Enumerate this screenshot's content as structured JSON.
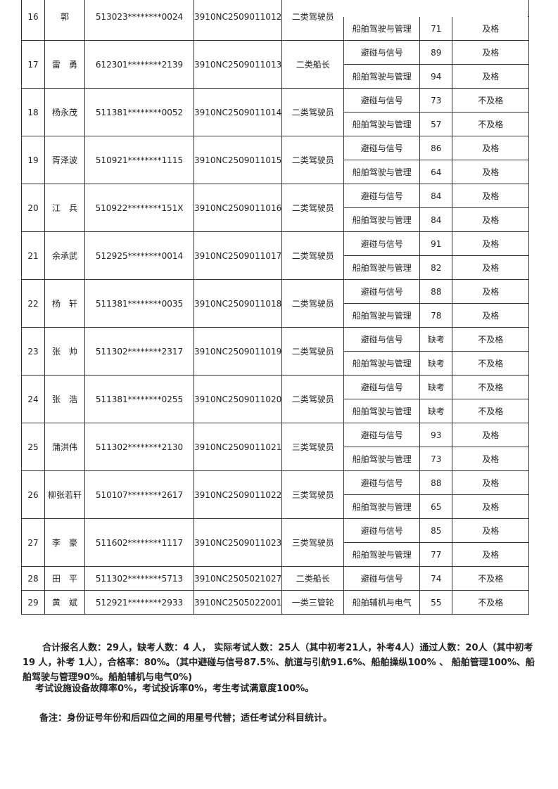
{
  "rows": [
    {
      "no": "16",
      "name": "郭",
      "id": "513023********0024",
      "exam_no": "3910NC2509011012",
      "category": "二类驾驶员",
      "subjects": [
        {
          "name": "",
          "score": "",
          "result": ""
        },
        {
          "name": "船舶驾驶与管理",
          "score": "71",
          "result": "及格"
        }
      ]
    },
    {
      "no": "17",
      "name": "雷　勇",
      "id": "612301********2139",
      "exam_no": "3910NC2509011013",
      "category": "二类船长",
      "subjects": [
        {
          "name": "避碰与信号",
          "score": "89",
          "result": "及格"
        },
        {
          "name": "船舶驾驶与管理",
          "score": "94",
          "result": "及格"
        }
      ]
    },
    {
      "no": "18",
      "name": "杨永茂",
      "id": "511381********0052",
      "exam_no": "3910NC2509011014",
      "category": "二类驾驶员",
      "subjects": [
        {
          "name": "避碰与信号",
          "score": "73",
          "result": "不及格"
        },
        {
          "name": "船舶驾驶与管理",
          "score": "57",
          "result": "不及格"
        }
      ]
    },
    {
      "no": "19",
      "name": "胥泽波",
      "id": "510921********1115",
      "exam_no": "3910NC2509011015",
      "category": "二类驾驶员",
      "subjects": [
        {
          "name": "避碰与信号",
          "score": "86",
          "result": "及格"
        },
        {
          "name": "船舶驾驶与管理",
          "score": "64",
          "result": "及格"
        }
      ]
    },
    {
      "no": "20",
      "name": "江　兵",
      "id": "510922********151X",
      "exam_no": "3910NC2509011016",
      "category": "二类驾驶员",
      "subjects": [
        {
          "name": "避碰与信号",
          "score": "84",
          "result": "及格"
        },
        {
          "name": "船舶驾驶与管理",
          "score": "84",
          "result": "及格"
        }
      ]
    },
    {
      "no": "21",
      "name": "余承武",
      "id": "512925********0014",
      "exam_no": "3910NC2509011017",
      "category": "二类驾驶员",
      "subjects": [
        {
          "name": "避碰与信号",
          "score": "91",
          "result": "及格"
        },
        {
          "name": "船舶驾驶与管理",
          "score": "82",
          "result": "及格"
        }
      ]
    },
    {
      "no": "22",
      "name": "杨　轩",
      "id": "511381********0035",
      "exam_no": "3910NC2509011018",
      "category": "二类驾驶员",
      "subjects": [
        {
          "name": "避碰与信号",
          "score": "88",
          "result": "及格"
        },
        {
          "name": "船舶驾驶与管理",
          "score": "78",
          "result": "及格"
        }
      ]
    },
    {
      "no": "23",
      "name": "张　帅",
      "id": "511302********2317",
      "exam_no": "3910NC2509011019",
      "category": "二类驾驶员",
      "subjects": [
        {
          "name": "避碰与信号",
          "score": "缺考",
          "result": "不及格"
        },
        {
          "name": "船舶驾驶与管理",
          "score": "缺考",
          "result": "不及格"
        }
      ]
    },
    {
      "no": "24",
      "name": "张　浩",
      "id": "511381********0255",
      "exam_no": "3910NC2509011020",
      "category": "二类驾驶员",
      "subjects": [
        {
          "name": "避碰与信号",
          "score": "缺考",
          "result": "不及格"
        },
        {
          "name": "船舶驾驶与管理",
          "score": "缺考",
          "result": "不及格"
        }
      ]
    },
    {
      "no": "25",
      "name": "蒲洪伟",
      "id": "511302********2130",
      "exam_no": "3910NC2509011021",
      "category": "三类驾驶员",
      "subjects": [
        {
          "name": "避碰与信号",
          "score": "93",
          "result": "及格"
        },
        {
          "name": "船舶驾驶与管理",
          "score": "73",
          "result": "及格"
        }
      ]
    },
    {
      "no": "26",
      "name": "柳张若轩",
      "id": "510107********2617",
      "exam_no": "3910NC2509011022",
      "category": "三类驾驶员",
      "subjects": [
        {
          "name": "避碰与信号",
          "score": "88",
          "result": "及格"
        },
        {
          "name": "船舶驾驶与管理",
          "score": "65",
          "result": "及格"
        }
      ]
    },
    {
      "no": "27",
      "name": "李　豪",
      "id": "511602********1117",
      "exam_no": "3910NC2509011023",
      "category": "三类驾驶员",
      "subjects": [
        {
          "name": "避碰与信号",
          "score": "85",
          "result": "及格"
        },
        {
          "name": "船舶驾驶与管理",
          "score": "77",
          "result": "及格"
        }
      ]
    },
    {
      "no": "28",
      "name": "田　平",
      "id": "511302********5713",
      "exam_no": "3910NC2505021027",
      "category": "二类船长",
      "subjects": [
        {
          "name": "避碰与信号",
          "score": "74",
          "result": "不及格"
        }
      ]
    },
    {
      "no": "29",
      "name": "黄　斌",
      "id": "512921********2933",
      "exam_no": "3910NC2505022001",
      "category": "一类三管轮",
      "subjects": [
        {
          "name": "船舶辅机与电气",
          "score": "55",
          "result": "不及格"
        }
      ]
    }
  ],
  "summary": "合计报名人数：29人，缺考人数：4 人， 实际考试人数：25人（其中初考21人，补考4人）通过人数：20人（其中初考19 人，补考 1人），合格率：80%。（其中避碰与信号87.5%、航道与引航91.6%、船舶操纵100% 、 船舶管理100%、船舶驾驶与管理90%。船舶辅机与电气0%)",
  "facility": "考试设施设备故障率0%，考试投诉率0%，考生考试满意度100%。",
  "remark": "备注：身份证号年份和后四位之间的用星号代替；适任考试分科目统计。"
}
